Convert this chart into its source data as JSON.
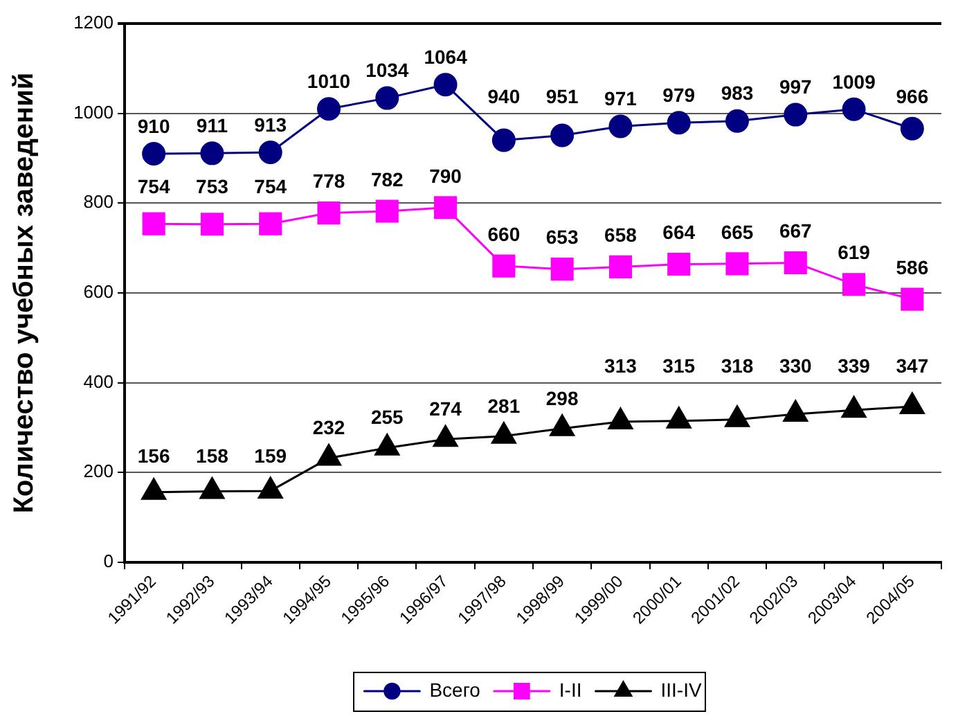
{
  "chart_data": {
    "type": "line",
    "ylabel": "Количество учебных заведений",
    "categories": [
      "1991/92",
      "1992/93",
      "1993/94",
      "1994/95",
      "1995/96",
      "1996/97",
      "1997/98",
      "1998/99",
      "1999/00",
      "2000/01",
      "2001/02",
      "2002/03",
      "2003/04",
      "2004/05"
    ],
    "series": [
      {
        "name": "Всего",
        "color": "#000080",
        "marker": "circle",
        "values": [
          910,
          911,
          913,
          1010,
          1034,
          1064,
          940,
          951,
          971,
          979,
          983,
          997,
          1009,
          966
        ]
      },
      {
        "name": "I-II",
        "color": "#ff00ff",
        "marker": "square",
        "values": [
          754,
          753,
          754,
          778,
          782,
          790,
          660,
          653,
          658,
          664,
          665,
          667,
          619,
          586
        ]
      },
      {
        "name": "III-IV",
        "color": "#000000",
        "marker": "triangle",
        "values": [
          156,
          158,
          159,
          232,
          255,
          274,
          281,
          298,
          313,
          315,
          318,
          330,
          339,
          347
        ]
      }
    ],
    "ylim": [
      0,
      1200
    ],
    "yticks": [
      0,
      200,
      400,
      600,
      800,
      1000,
      1200
    ],
    "grid": "y",
    "legend": "bottom",
    "data_labels": true
  }
}
